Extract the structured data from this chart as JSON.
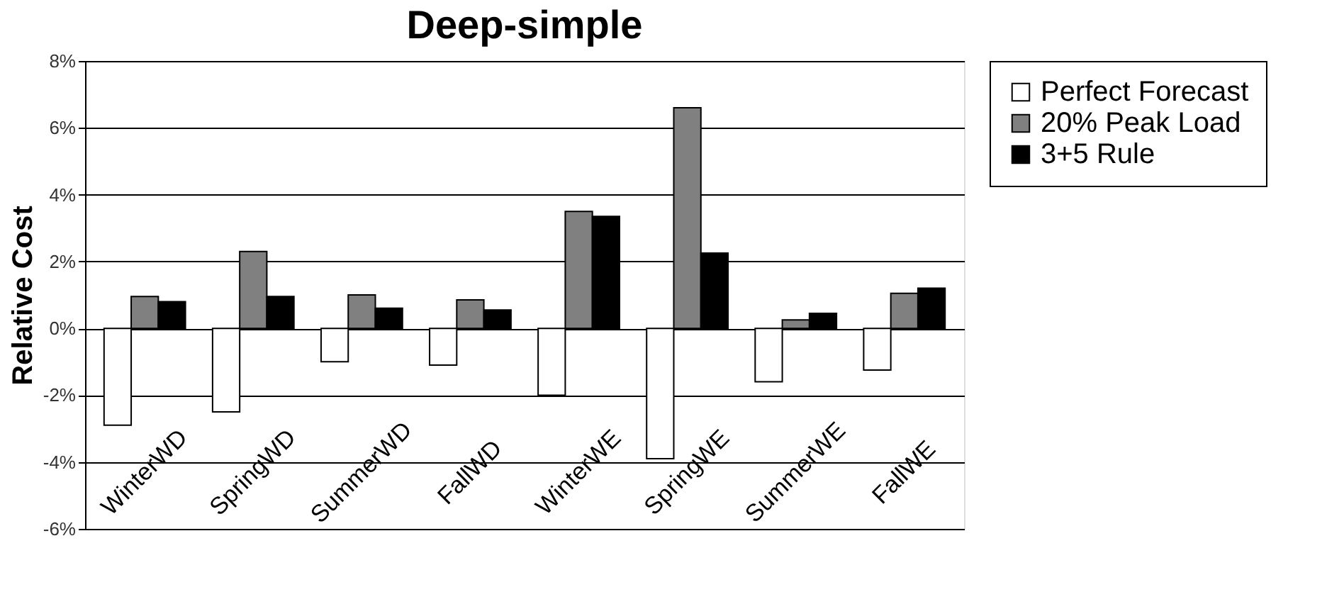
{
  "chart_data": {
    "type": "bar",
    "title": "Deep-simple",
    "ylabel": "Relative Cost",
    "categories": [
      "WinterWD",
      "SpringWD",
      "SummerWD",
      "FallWD",
      "WinterWE",
      "SpringWE",
      "SummerWE",
      "FallWE"
    ],
    "series": [
      {
        "name": "Perfect Forecast",
        "color": "#ffffff",
        "values": [
          -2.9,
          -2.5,
          -1.0,
          -1.1,
          -2.0,
          -3.9,
          -1.6,
          -1.25
        ]
      },
      {
        "name": "20% Peak Load",
        "color": "#808080",
        "values": [
          0.95,
          2.3,
          1.0,
          0.85,
          3.5,
          6.6,
          0.25,
          1.05
        ]
      },
      {
        "name": "3+5 Rule",
        "color": "#000000",
        "values": [
          0.8,
          0.95,
          0.6,
          0.55,
          3.35,
          2.25,
          0.45,
          1.2
        ]
      }
    ],
    "ylim": [
      -6,
      8
    ],
    "yticks": [
      {
        "value": -6,
        "label": "-6%"
      },
      {
        "value": -4,
        "label": "-4%"
      },
      {
        "value": -2,
        "label": "-2%"
      },
      {
        "value": 0,
        "label": "0%"
      },
      {
        "value": 2,
        "label": "2%"
      },
      {
        "value": 4,
        "label": "4%"
      },
      {
        "value": 6,
        "label": "6%"
      },
      {
        "value": 8,
        "label": "8%"
      }
    ],
    "grid": "y",
    "legend": "right"
  }
}
